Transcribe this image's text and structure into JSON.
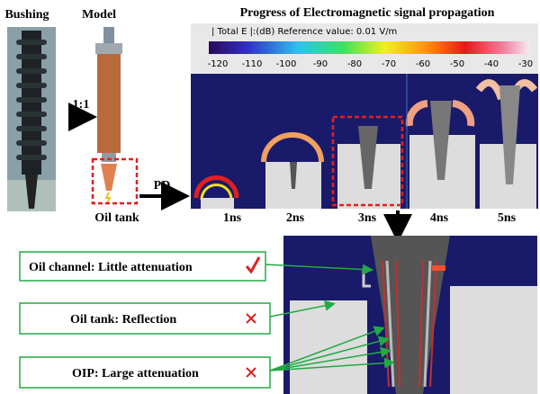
{
  "header": {
    "bushing": "Bushing",
    "model": "Model",
    "title": "Progress of Electromagnetic signal propagation"
  },
  "colorbar": {
    "label": "| Total E |:(dB) Reference value: 0.01 V/m",
    "ticks": [
      -120,
      -110,
      -100,
      -90,
      -80,
      -70,
      -60,
      -50,
      -40,
      -30
    ]
  },
  "labels": {
    "ratio": "1:1",
    "pd": "PD",
    "oil_tank": "Oil tank"
  },
  "panels": [
    "1ns",
    "2ns",
    "3ns",
    "4ns",
    "5ns"
  ],
  "annotations": [
    "Oil channel: Little attenuation",
    "Oil tank: Reflection",
    "OIP: Large attenuation"
  ]
}
